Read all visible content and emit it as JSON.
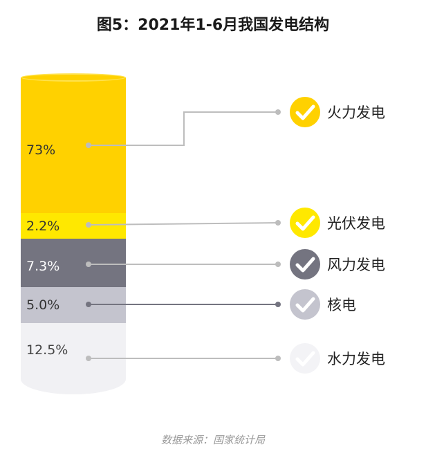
{
  "title": "图5：2021年1-6月我国发电结构",
  "source": "数据来源：国家统计局",
  "colors": {
    "thermal": "#FFD100",
    "solar": "#FFE800",
    "wind": "#747480",
    "nuclear": "#C4C4CE",
    "hydro": "#F1F1F4",
    "connector": "#BDBDBD",
    "connector_dark": "#747480",
    "check": "#ffffff"
  },
  "chart_data": {
    "type": "bar",
    "title": "图5：2021年1-6月我国发电结构",
    "stacked": true,
    "unit": "%",
    "categories": [
      "火力发电",
      "光伏发电",
      "风力发电",
      "核电",
      "水力发电"
    ],
    "values": [
      73,
      2.2,
      7.3,
      5.0,
      12.5
    ],
    "value_labels": [
      "73%",
      "2.2%",
      "7.3%",
      "5.0%",
      "12.5%"
    ],
    "legend_icon": "check-circle-icon"
  }
}
